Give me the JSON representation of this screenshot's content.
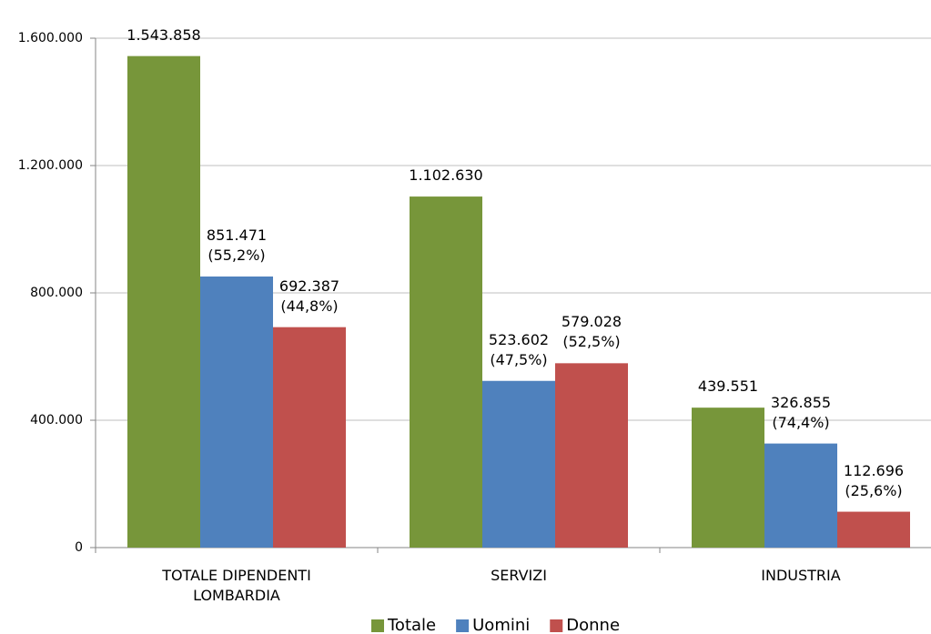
{
  "chart_data": {
    "type": "bar",
    "categories": [
      "TOTALE DIPENDENTI LOMBARDIA",
      "SERVIZI",
      "INDUSTRIA"
    ],
    "series": [
      {
        "name": "Totale",
        "color": "#77963a",
        "values": [
          1543858,
          1102630,
          439551
        ],
        "value_labels": [
          "1.543.858",
          "1.102.630",
          "439.551"
        ]
      },
      {
        "name": "Uomini",
        "color": "#4f81bd",
        "values": [
          851471,
          523602,
          326855
        ],
        "value_labels": [
          "851.471\n(55,2%)",
          "523.602\n(47,5%)",
          "326.855\n(74,4%)"
        ]
      },
      {
        "name": "Donne",
        "color": "#c0504d",
        "values": [
          692387,
          579028,
          112696
        ],
        "value_labels": [
          "692.387\n(44,8%)",
          "579.028\n(52,5%)",
          "112.696\n(25,6%)"
        ]
      }
    ],
    "ylim": [
      0,
      1600000
    ],
    "yticks": [
      0,
      {
        "value": 400000,
        "label": "400.000"
      },
      {
        "value": 800000,
        "label": "800.000"
      },
      {
        "value": 1200000,
        "label": "1.200.000"
      },
      {
        "value": 1600000,
        "label": "1.600.000"
      }
    ],
    "grid": true,
    "legend": "bottom"
  }
}
